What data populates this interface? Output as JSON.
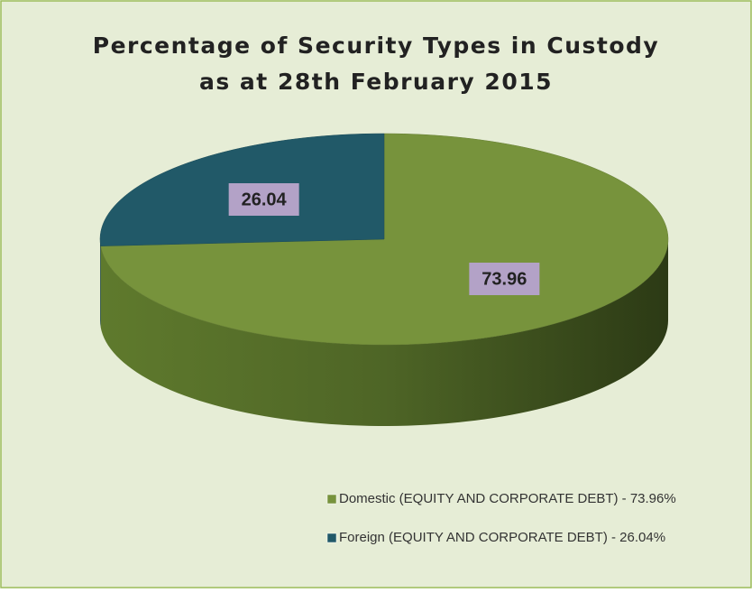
{
  "chart_data": {
    "type": "pie3d",
    "title": [
      "Percentage of Security Types in Custody",
      "as at 28th February 2015"
    ],
    "categories": [
      "Domestic (EQUITY AND CORPORATE DEBT) - 73.96%",
      "Foreign (EQUITY AND CORPORATE DEBT) - 26.04%"
    ],
    "values": [
      73.96,
      26.04
    ],
    "colors": [
      "#77933c",
      "#215968"
    ],
    "legend": "bottom"
  }
}
